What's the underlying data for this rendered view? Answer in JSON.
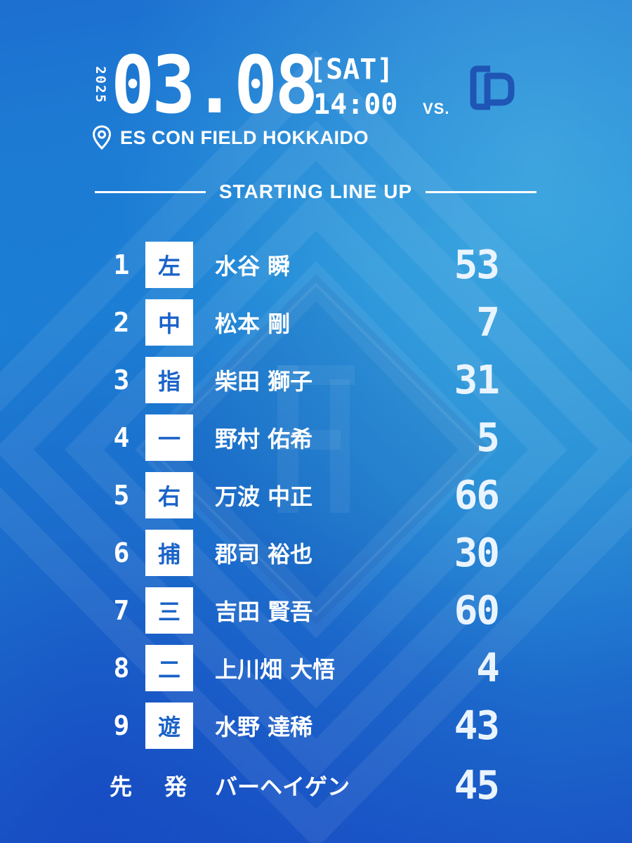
{
  "header": {
    "year": "2025",
    "date": "03.08",
    "weekday": "[SAT]",
    "time": "14:00",
    "vs_label": "VS.",
    "opponent_logo": "CD",
    "venue": "ES CON FIELD HOKKAIDO",
    "venue_icon": "map-pin-icon"
  },
  "section_title": "STARTING LINE UP",
  "lineup": [
    {
      "order": "1",
      "position": "左",
      "name": "水谷 瞬",
      "number": "53"
    },
    {
      "order": "2",
      "position": "中",
      "name": "松本 剛",
      "number": "7"
    },
    {
      "order": "3",
      "position": "指",
      "name": "柴田 獅子",
      "number": "31"
    },
    {
      "order": "4",
      "position": "一",
      "name": "野村 佑希",
      "number": "5"
    },
    {
      "order": "5",
      "position": "右",
      "name": "万波 中正",
      "number": "66"
    },
    {
      "order": "6",
      "position": "捕",
      "name": "郡司 裕也",
      "number": "30"
    },
    {
      "order": "7",
      "position": "三",
      "name": "吉田 賢吾",
      "number": "60"
    },
    {
      "order": "8",
      "position": "二",
      "name": "上川畑 大悟",
      "number": "4"
    },
    {
      "order": "9",
      "position": "遊",
      "name": "水野 達稀",
      "number": "43"
    }
  ],
  "starter": {
    "label_1": "先",
    "label_2": "発",
    "name": "バーヘイゲン",
    "number": "45"
  },
  "colors": {
    "background_top": "#1d6fd0",
    "background_bottom": "#1a55c6",
    "accent_text": "#1a63c8",
    "opponent_logo": "#1f55b5",
    "text": "#ffffff"
  }
}
